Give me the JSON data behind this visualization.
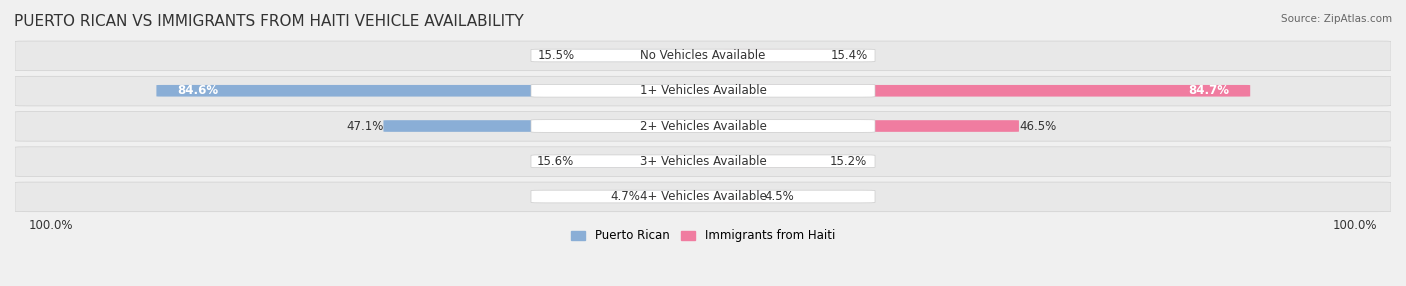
{
  "title": "PUERTO RICAN VS IMMIGRANTS FROM HAITI VEHICLE AVAILABILITY",
  "source": "Source: ZipAtlas.com",
  "categories": [
    "No Vehicles Available",
    "1+ Vehicles Available",
    "2+ Vehicles Available",
    "3+ Vehicles Available",
    "4+ Vehicles Available"
  ],
  "puerto_rican_values": [
    15.5,
    84.6,
    47.1,
    15.6,
    4.7
  ],
  "haiti_values": [
    15.4,
    84.7,
    46.5,
    15.2,
    4.5
  ],
  "puerto_rican_color": "#8aaed6",
  "haiti_color": "#f07ca0",
  "puerto_rican_dark_color": "#6b9cc8",
  "haiti_dark_color": "#e85c8a",
  "background_color": "#f0f0f0",
  "bar_bg_color": "#e8e8e8",
  "legend_pr_color": "#8aaed6",
  "legend_haiti_color": "#f07ca0",
  "pr_label": "Puerto Rican",
  "haiti_label": "Immigrants from Haiti",
  "left_label": "100.0%",
  "right_label": "100.0%",
  "title_fontsize": 11,
  "label_fontsize": 8.5,
  "category_fontsize": 8.5,
  "value_fontsize": 8.5
}
